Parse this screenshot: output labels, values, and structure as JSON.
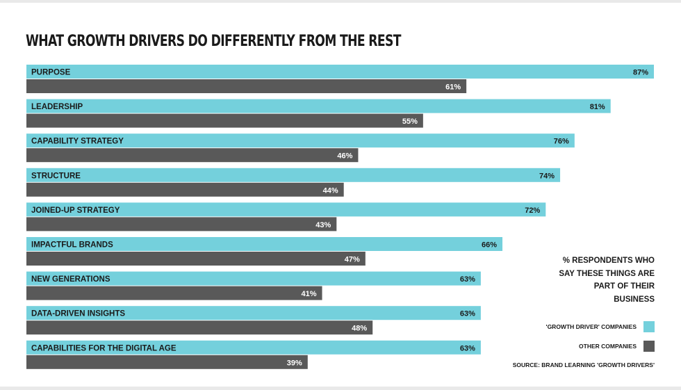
{
  "colors": {
    "growth": "#74d0dc",
    "other": "#595959",
    "background": "#ffffff",
    "frame": "#e9e9e9",
    "text": "#1a1a1a"
  },
  "chart_data": {
    "type": "bar",
    "orientation": "horizontal",
    "title": "WHAT GROWTH DRIVERS DO DIFFERENTLY FROM THE REST",
    "categories": [
      "PURPOSE",
      "LEADERSHIP",
      "CAPABILITY STRATEGY",
      "STRUCTURE",
      "JOINED-UP STRATEGY",
      "IMPACTFUL BRANDS",
      "NEW GENERATIONS",
      "DATA-DRIVEN INSIGHTS",
      "CAPABILITIES FOR THE DIGITAL AGE"
    ],
    "series": [
      {
        "name": "'GROWTH DRIVER' COMPANIES",
        "values": [
          87,
          81,
          76,
          74,
          72,
          66,
          63,
          63,
          63
        ]
      },
      {
        "name": "OTHER COMPANIES",
        "values": [
          61,
          55,
          46,
          44,
          43,
          47,
          41,
          48,
          39
        ]
      }
    ],
    "value_labels_growth": [
      "87%",
      "81%",
      "76%",
      "74%",
      "72%",
      "66%",
      "63%",
      "63%",
      "63%"
    ],
    "value_labels_other": [
      "61%",
      "55%",
      "46%",
      "44%",
      "43%",
      "47%",
      "41%",
      "48%",
      "39%"
    ],
    "xlim": [
      0,
      87
    ],
    "grid": false,
    "legend_title": "% RESPONDENTS WHO SAY THESE THINGS ARE PART OF THEIR BUSINESS",
    "legend_lines": [
      "% RESPONDENTS WHO",
      "SAY THESE THINGS ARE",
      "PART OF THEIR",
      "BUSINESS"
    ],
    "legend_position": "bottom-right",
    "source": "SOURCE: BRAND LEARNING 'GROWTH DRIVERS'"
  }
}
